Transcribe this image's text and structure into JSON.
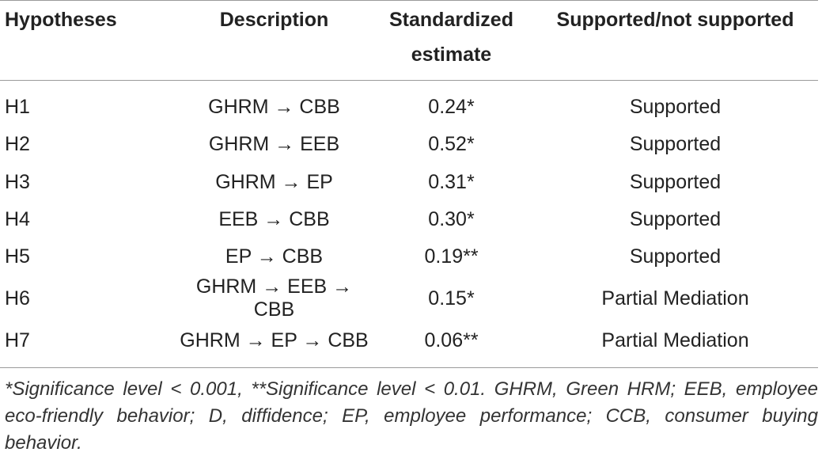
{
  "table": {
    "headers": [
      "Hypotheses",
      "Description",
      "Standardized estimate",
      "Supported/not supported"
    ],
    "rows": [
      {
        "hypothesis": "H1",
        "description": "GHRM → CBB",
        "estimate": "0.24*",
        "support": "Supported"
      },
      {
        "hypothesis": "H2",
        "description": "GHRM → EEB",
        "estimate": "0.52*",
        "support": "Supported"
      },
      {
        "hypothesis": "H3",
        "description": "GHRM → EP",
        "estimate": "0.31*",
        "support": "Supported"
      },
      {
        "hypothesis": "H4",
        "description": "EEB → CBB",
        "estimate": "0.30*",
        "support": "Supported"
      },
      {
        "hypothesis": "H5",
        "description": "EP → CBB",
        "estimate": "0.19**",
        "support": "Supported"
      },
      {
        "hypothesis": "H6",
        "description": "GHRM → EEB → CBB",
        "estimate": "0.15*",
        "support": "Partial Mediation"
      },
      {
        "hypothesis": "H7",
        "description": "GHRM → EP → CBB",
        "estimate": "0.06**",
        "support": "Partial Mediation"
      }
    ]
  },
  "footnote": "*Significance level < 0.001, **Significance level < 0.01. GHRM, Green HRM; EEB, employee eco-friendly behavior; D, diffidence; EP, employee performance; CCB, consumer buying behavior."
}
